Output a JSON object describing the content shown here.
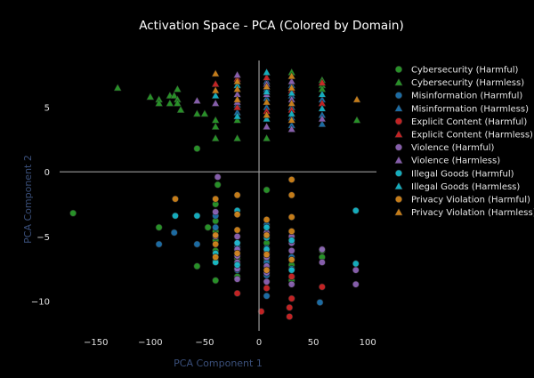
{
  "chart_data": {
    "type": "scatter",
    "title": "Activation Space - PCA (Colored by Domain)",
    "xlabel": "PCA Component 1",
    "ylabel": "PCA Component 2",
    "xlim": [
      -185,
      108
    ],
    "ylim": [
      -12.3,
      9.3
    ],
    "xticks": [
      -150,
      -100,
      -50,
      0,
      50,
      100
    ],
    "yticks": [
      -10,
      -5,
      0,
      5
    ],
    "zero_lines": true,
    "grid": false,
    "legend_position": "right",
    "series": [
      {
        "name": "Cybersecurity (Harmful)",
        "marker": "circle",
        "color": "#2ca02c",
        "points": [
          [
            -171,
            -3.2
          ],
          [
            -92,
            -4.3
          ],
          [
            -57,
            -7.3
          ],
          [
            -57,
            1.8
          ],
          [
            -47,
            -4.3
          ],
          [
            -40,
            -2.5
          ],
          [
            -40,
            -3.8
          ],
          [
            -40,
            -4.6
          ],
          [
            -40,
            -5.3
          ],
          [
            -40,
            -6.1
          ],
          [
            -40,
            -6.9
          ],
          [
            -40,
            -8.4
          ],
          [
            -20,
            -6.7
          ],
          [
            -20,
            -8.1
          ],
          [
            7,
            -5.5
          ],
          [
            7,
            -6.8
          ],
          [
            30,
            -7.2
          ],
          [
            30,
            -8.4
          ],
          [
            58,
            -6.1
          ],
          [
            58,
            -6.6
          ],
          [
            -38,
            -1.0
          ],
          [
            7,
            -1.4
          ]
        ]
      },
      {
        "name": "Cybersecurity (Harmless)",
        "marker": "triangle",
        "color": "#2ca02c",
        "points": [
          [
            -130,
            6.5
          ],
          [
            -100,
            5.8
          ],
          [
            -92,
            5.6
          ],
          [
            -92,
            5.3
          ],
          [
            -82,
            5.9
          ],
          [
            -82,
            5.3
          ],
          [
            -78,
            5.9
          ],
          [
            -75,
            6.4
          ],
          [
            -75,
            5.6
          ],
          [
            -75,
            5.3
          ],
          [
            -72,
            4.8
          ],
          [
            -57,
            4.5
          ],
          [
            -50,
            4.5
          ],
          [
            -40,
            4.0
          ],
          [
            -40,
            3.5
          ],
          [
            -40,
            2.6
          ],
          [
            -20,
            2.6
          ],
          [
            7,
            2.6
          ],
          [
            30,
            7.7
          ],
          [
            30,
            5.0
          ],
          [
            58,
            7.1
          ],
          [
            58,
            6.7
          ],
          [
            58,
            6.4
          ],
          [
            90,
            4.0
          ],
          [
            -20,
            4.0
          ]
        ]
      },
      {
        "name": "Misinformation (Harmful)",
        "marker": "circle",
        "color": "#1f77b4",
        "points": [
          [
            -92,
            -5.6
          ],
          [
            -78,
            -4.7
          ],
          [
            -57,
            -5.6
          ],
          [
            -40,
            -3.4
          ],
          [
            -40,
            -4.3
          ],
          [
            -20,
            -5.8
          ],
          [
            -20,
            -7.6
          ],
          [
            7,
            -4.1
          ],
          [
            7,
            -5.9
          ],
          [
            7,
            -7.0
          ],
          [
            7,
            -8.0
          ],
          [
            7,
            -9.6
          ],
          [
            30,
            -6.6
          ],
          [
            30,
            -7.5
          ],
          [
            56,
            -10.1
          ]
        ]
      },
      {
        "name": "Misinformation (Harmless)",
        "marker": "triangle",
        "color": "#1f77b4",
        "points": [
          [
            7,
            7.0
          ],
          [
            7,
            6.4
          ],
          [
            7,
            5.7
          ],
          [
            7,
            5.0
          ],
          [
            30,
            6.7
          ],
          [
            30,
            5.9
          ],
          [
            30,
            5.0
          ],
          [
            30,
            4.2
          ],
          [
            30,
            3.6
          ],
          [
            58,
            5.6
          ],
          [
            58,
            4.4
          ],
          [
            58,
            3.7
          ],
          [
            -20,
            5.2
          ],
          [
            -20,
            4.6
          ]
        ]
      },
      {
        "name": "Explicit Content (Harmful)",
        "marker": "circle",
        "color": "#d62728",
        "points": [
          [
            -20,
            -9.4
          ],
          [
            2,
            -10.8
          ],
          [
            7,
            -9.0
          ],
          [
            7,
            -6.2
          ],
          [
            28,
            -10.5
          ],
          [
            28,
            -11.2
          ],
          [
            30,
            -9.8
          ],
          [
            58,
            -8.9
          ],
          [
            30,
            -8.1
          ]
        ]
      },
      {
        "name": "Explicit Content (Harmless)",
        "marker": "triangle",
        "color": "#d62728",
        "points": [
          [
            -40,
            6.8
          ],
          [
            -20,
            7.2
          ],
          [
            -20,
            5.0
          ],
          [
            7,
            7.3
          ],
          [
            7,
            4.7
          ],
          [
            30,
            6.3
          ],
          [
            30,
            4.8
          ],
          [
            58,
            6.9
          ],
          [
            58,
            5.3
          ]
        ]
      },
      {
        "name": "Violence (Harmful)",
        "marker": "circle",
        "color": "#9467bd",
        "points": [
          [
            -38,
            -0.4
          ],
          [
            -40,
            -3.1
          ],
          [
            -40,
            -5.0
          ],
          [
            -20,
            -5.0
          ],
          [
            -20,
            -5.5
          ],
          [
            -20,
            -6.0
          ],
          [
            -20,
            -6.5
          ],
          [
            -20,
            -7.0
          ],
          [
            -20,
            -7.5
          ],
          [
            -20,
            -8.3
          ],
          [
            7,
            -4.7
          ],
          [
            7,
            -6.6
          ],
          [
            7,
            -7.3
          ],
          [
            7,
            -7.8
          ],
          [
            7,
            -8.5
          ],
          [
            30,
            -5.0
          ],
          [
            30,
            -5.5
          ],
          [
            30,
            -6.1
          ],
          [
            30,
            -8.7
          ],
          [
            58,
            -6.0
          ],
          [
            58,
            -7.0
          ],
          [
            89,
            -7.6
          ],
          [
            89,
            -8.7
          ]
        ]
      },
      {
        "name": "Violence (Harmless)",
        "marker": "triangle",
        "color": "#9467bd",
        "points": [
          [
            -40,
            5.3
          ],
          [
            -20,
            7.5
          ],
          [
            -20,
            6.0
          ],
          [
            -20,
            5.4
          ],
          [
            7,
            6.8
          ],
          [
            7,
            6.0
          ],
          [
            7,
            3.5
          ],
          [
            30,
            7.0
          ],
          [
            30,
            5.6
          ],
          [
            30,
            3.3
          ],
          [
            58,
            4.1
          ],
          [
            -57,
            5.5
          ]
        ]
      },
      {
        "name": "Illegal Goods (Harmful)",
        "marker": "circle",
        "color": "#17becf",
        "points": [
          [
            -77,
            -3.4
          ],
          [
            -57,
            -3.4
          ],
          [
            -40,
            -6.3
          ],
          [
            -40,
            -7.0
          ],
          [
            -20,
            -5.5
          ],
          [
            -20,
            -7.2
          ],
          [
            7,
            -4.3
          ],
          [
            7,
            -5.1
          ],
          [
            7,
            -6.0
          ],
          [
            30,
            -5.3
          ],
          [
            30,
            -7.6
          ],
          [
            89,
            -3.0
          ],
          [
            89,
            -7.1
          ],
          [
            -20,
            -3.0
          ]
        ]
      },
      {
        "name": "Illegal Goods (Harmless)",
        "marker": "triangle",
        "color": "#17becf",
        "points": [
          [
            -20,
            6.7
          ],
          [
            7,
            7.7
          ],
          [
            7,
            6.2
          ],
          [
            7,
            4.1
          ],
          [
            30,
            6.1
          ],
          [
            30,
            4.5
          ],
          [
            58,
            6.0
          ],
          [
            58,
            4.9
          ],
          [
            -40,
            5.9
          ],
          [
            -20,
            4.3
          ]
        ]
      },
      {
        "name": "Privacy Violation (Harmful)",
        "marker": "circle",
        "color": "#d98a1c",
        "points": [
          [
            -77,
            -2.1
          ],
          [
            -40,
            -2.1
          ],
          [
            -40,
            -4.9
          ],
          [
            -40,
            -5.6
          ],
          [
            -40,
            -6.6
          ],
          [
            -20,
            -1.8
          ],
          [
            -20,
            -3.3
          ],
          [
            -20,
            -4.5
          ],
          [
            -20,
            -6.3
          ],
          [
            7,
            -3.7
          ],
          [
            7,
            -4.9
          ],
          [
            7,
            -6.4
          ],
          [
            7,
            -7.6
          ],
          [
            30,
            -0.6
          ],
          [
            30,
            -1.8
          ],
          [
            30,
            -3.5
          ],
          [
            30,
            -4.6
          ],
          [
            30,
            -6.8
          ]
        ]
      },
      {
        "name": "Privacy Violation (Harmless)",
        "marker": "triangle",
        "color": "#d98a1c",
        "points": [
          [
            -40,
            7.6
          ],
          [
            -20,
            7.0
          ],
          [
            -20,
            6.4
          ],
          [
            -20,
            5.6
          ],
          [
            7,
            6.6
          ],
          [
            7,
            5.4
          ],
          [
            7,
            4.4
          ],
          [
            30,
            7.4
          ],
          [
            30,
            6.5
          ],
          [
            30,
            5.3
          ],
          [
            90,
            5.6
          ],
          [
            -40,
            6.3
          ],
          [
            30,
            4.0
          ]
        ]
      }
    ]
  }
}
